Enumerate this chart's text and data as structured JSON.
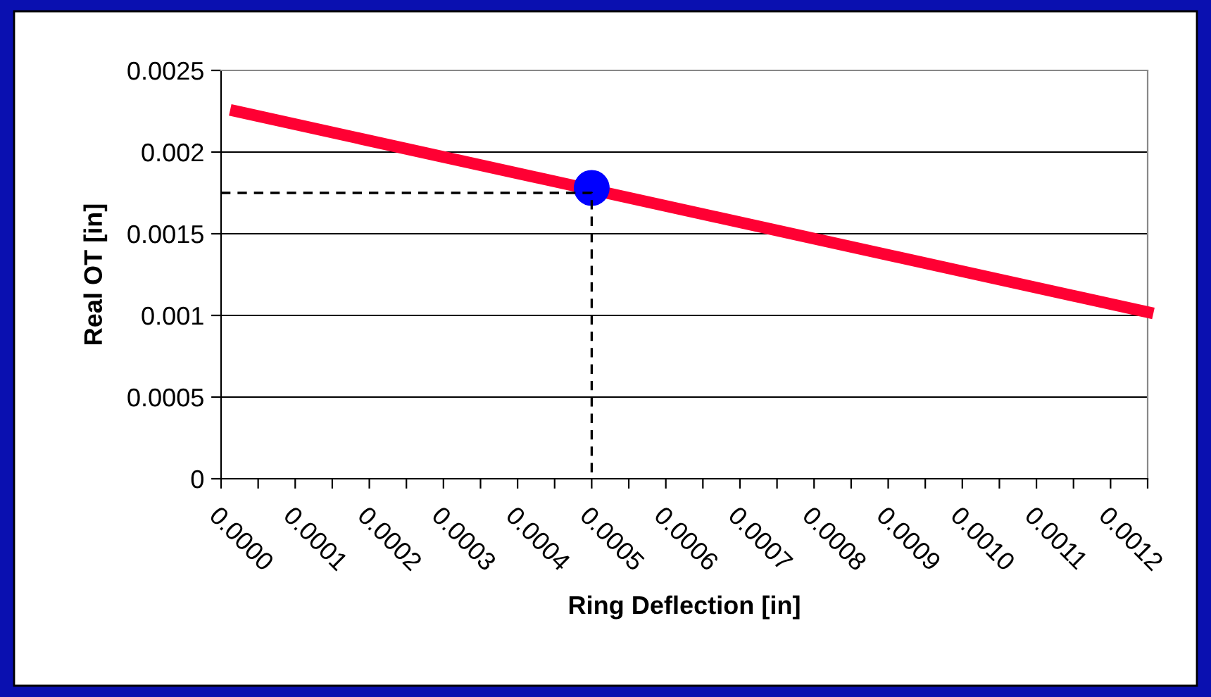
{
  "chart_data": {
    "type": "line",
    "xlabel": "Ring Deflection [in]",
    "ylabel": "Real OT [in]",
    "xlim": [
      0,
      0.00125
    ],
    "xticks": [
      {
        "value": 0,
        "label": "0.0000"
      },
      {
        "value": 5e-05,
        "label": null
      },
      {
        "value": 0.0001,
        "label": "0.0001"
      },
      {
        "value": 0.00015,
        "label": null
      },
      {
        "value": 0.0002,
        "label": "0.0002"
      },
      {
        "value": 0.00025,
        "label": null
      },
      {
        "value": 0.0003,
        "label": "0.0003"
      },
      {
        "value": 0.00035,
        "label": null
      },
      {
        "value": 0.0004,
        "label": "0.0004"
      },
      {
        "value": 0.00045,
        "label": null
      },
      {
        "value": 0.0005,
        "label": "0.0005"
      },
      {
        "value": 0.00055,
        "label": null
      },
      {
        "value": 0.0006,
        "label": "0.0006"
      },
      {
        "value": 0.00065,
        "label": null
      },
      {
        "value": 0.0007,
        "label": "0.0007"
      },
      {
        "value": 0.00075,
        "label": null
      },
      {
        "value": 0.0008,
        "label": "0.0008"
      },
      {
        "value": 0.00085,
        "label": null
      },
      {
        "value": 0.0009,
        "label": "0.0009"
      },
      {
        "value": 0.00095,
        "label": null
      },
      {
        "value": 0.001,
        "label": "0.0010"
      },
      {
        "value": 0.00105,
        "label": null
      },
      {
        "value": 0.0011,
        "label": "0.0011"
      },
      {
        "value": 0.00115,
        "label": null
      },
      {
        "value": 0.0012,
        "label": "0.0012"
      },
      {
        "value": 0.00125,
        "label": null
      }
    ],
    "ylim": [
      0,
      0.0025
    ],
    "yticks": [
      0,
      0.0005,
      0.001,
      0.0015,
      0.002,
      0.0025
    ],
    "grid": "y",
    "legend": false,
    "series": [
      {
        "color": "#ff0033",
        "x": [
          2e-05,
          0.00125
        ],
        "values": [
          0.00225,
          0.00102
        ],
        "marker": "none",
        "line_style": "solid"
      },
      {
        "color": "#000000",
        "x": [
          0,
          0.0005,
          0.0005
        ],
        "values": [
          0.00175,
          0.00175,
          0
        ],
        "marker": "none",
        "line_style": "dashed"
      },
      {
        "type": "scatter",
        "color": "#0000ff",
        "x": [
          0.0005
        ],
        "values": [
          0.00178
        ],
        "marker": "circle"
      }
    ]
  }
}
